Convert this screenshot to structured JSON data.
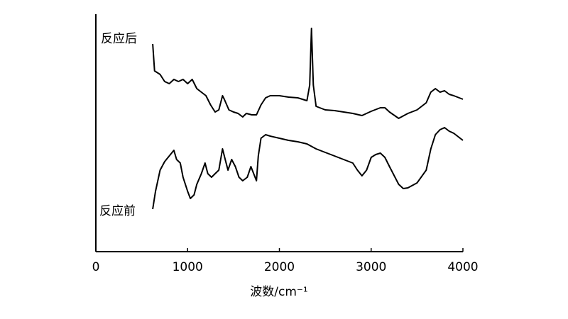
{
  "chart_data": {
    "type": "line",
    "x_label": "波数/cm⁻¹",
    "xlim": [
      0,
      4000
    ],
    "xticks": [
      0,
      1000,
      2000,
      3000,
      4000
    ],
    "ylim": [
      0,
      335
    ],
    "color": "#000000",
    "series": [
      {
        "name": "反应后",
        "x": [
          620,
          640,
          700,
          750,
          800,
          850,
          900,
          950,
          1000,
          1050,
          1100,
          1150,
          1200,
          1250,
          1300,
          1340,
          1380,
          1400,
          1450,
          1500,
          1550,
          1600,
          1640,
          1700,
          1750,
          1800,
          1850,
          1900,
          2000,
          2100,
          2200,
          2300,
          2330,
          2350,
          2370,
          2400,
          2500,
          2600,
          2700,
          2800,
          2900,
          2950,
          3000,
          3100,
          3150,
          3200,
          3300,
          3400,
          3500,
          3600,
          3650,
          3700,
          3750,
          3800,
          3850,
          3900,
          4000
        ],
        "values": [
          293,
          255,
          250,
          240,
          237,
          243,
          240,
          243,
          237,
          243,
          230,
          225,
          220,
          207,
          197,
          200,
          220,
          215,
          200,
          197,
          195,
          190,
          195,
          193,
          193,
          207,
          217,
          220,
          220,
          218,
          217,
          213,
          235,
          315,
          235,
          205,
          200,
          199,
          197,
          195,
          192,
          195,
          198,
          203,
          203,
          197,
          188,
          195,
          200,
          210,
          225,
          230,
          225,
          227,
          222,
          220,
          215
        ]
      },
      {
        "name": "反应前",
        "x": [
          620,
          650,
          700,
          750,
          800,
          850,
          880,
          920,
          950,
          1000,
          1030,
          1070,
          1100,
          1150,
          1190,
          1220,
          1260,
          1300,
          1340,
          1380,
          1410,
          1440,
          1480,
          1520,
          1560,
          1600,
          1650,
          1690,
          1720,
          1750,
          1770,
          1800,
          1850,
          1900,
          2000,
          2100,
          2200,
          2300,
          2400,
          2500,
          2600,
          2700,
          2800,
          2850,
          2900,
          2950,
          3000,
          3050,
          3100,
          3150,
          3200,
          3300,
          3350,
          3400,
          3500,
          3600,
          3650,
          3700,
          3750,
          3800,
          3850,
          3900,
          4000
        ],
        "values": [
          60,
          85,
          115,
          127,
          135,
          143,
          130,
          125,
          105,
          85,
          75,
          80,
          95,
          110,
          125,
          110,
          105,
          110,
          115,
          145,
          130,
          115,
          130,
          120,
          105,
          100,
          105,
          120,
          110,
          100,
          135,
          160,
          165,
          163,
          160,
          157,
          155,
          152,
          145,
          140,
          135,
          130,
          125,
          115,
          107,
          115,
          133,
          137,
          139,
          133,
          120,
          95,
          89,
          90,
          97,
          115,
          145,
          165,
          172,
          175,
          170,
          167,
          157
        ]
      }
    ]
  }
}
